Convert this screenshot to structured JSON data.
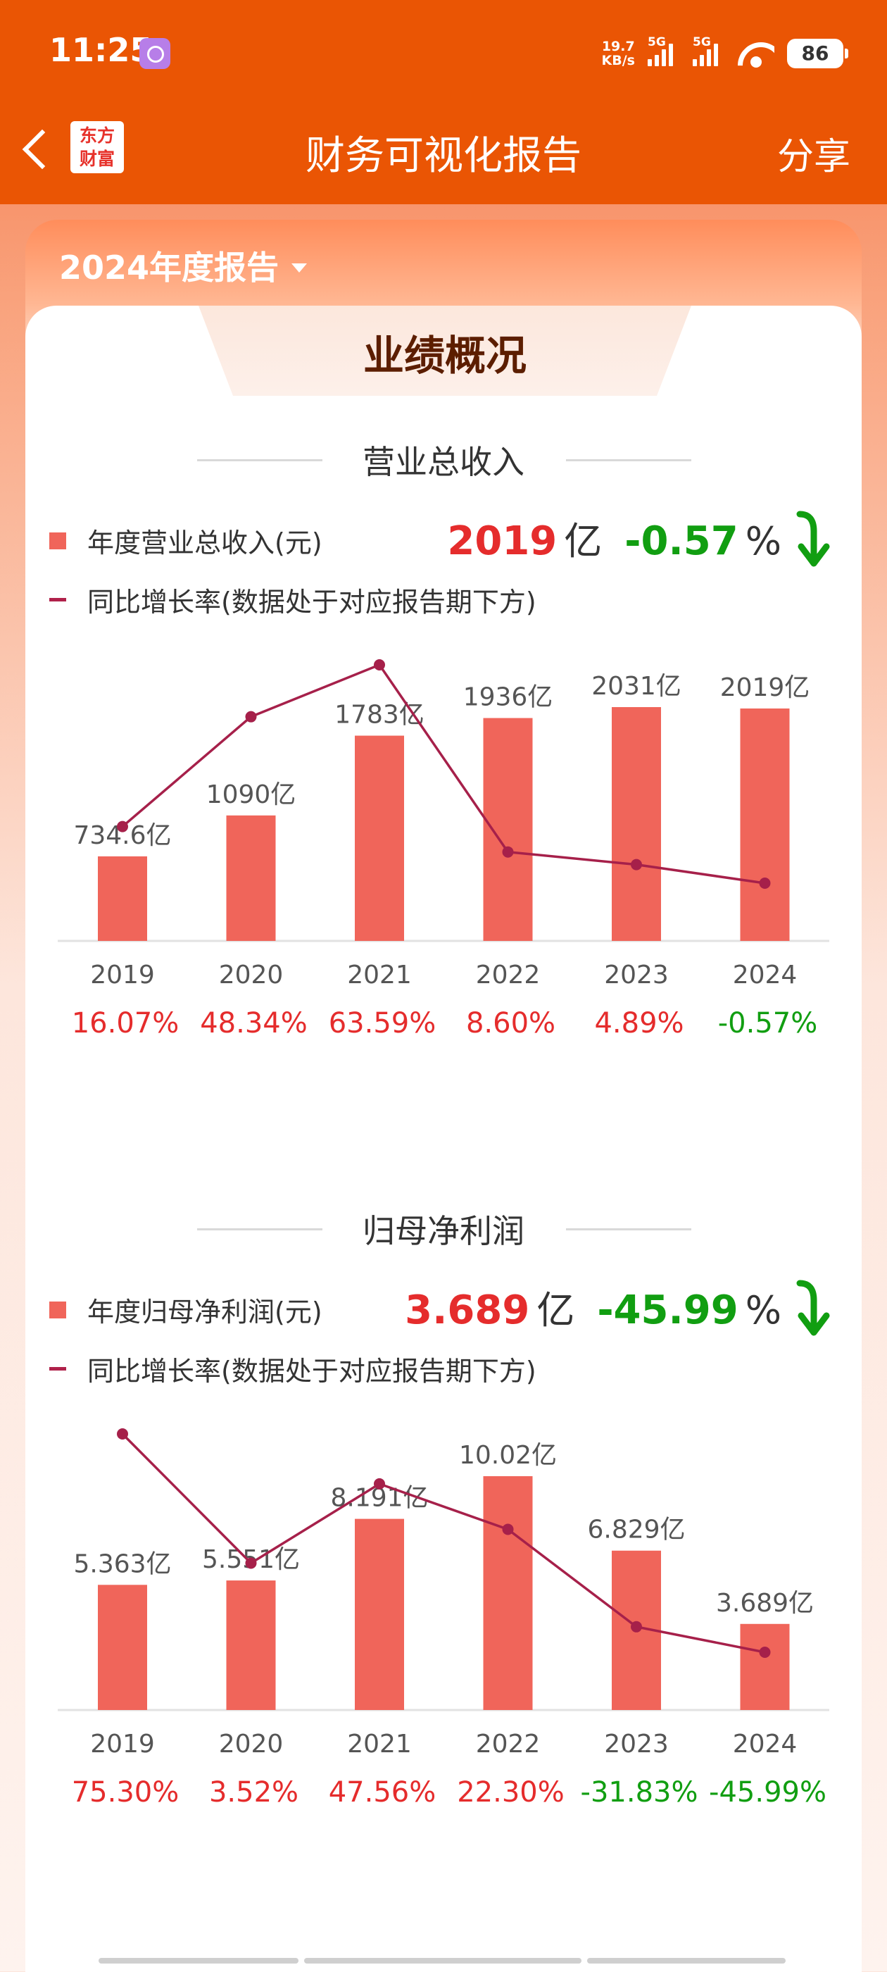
{
  "status_bar": {
    "time": "11:25",
    "net_speed_value": "19.7",
    "net_speed_unit": "KB/s",
    "signal1_label": "5G",
    "signal2_label": "5G",
    "battery": "86"
  },
  "header": {
    "logo_line1": "东方",
    "logo_line2": "财富",
    "title": "财务可视化报告",
    "share_label": "分享"
  },
  "report_selector": {
    "value": "2024年度报告"
  },
  "section_tab": "业绩概况",
  "colors": {
    "bar": "#f0655a",
    "line": "#a6204a",
    "positive": "#e52c2c",
    "negative": "#119e11",
    "header": "#ea5504"
  },
  "revenue": {
    "title": "营业总收入",
    "legend_bar": "年度营业总收入(元)",
    "legend_line": "同比增长率(数据处于对应报告期下方)",
    "headline_value": "2019",
    "headline_unit": "亿",
    "headline_pct": "-0.57",
    "headline_pct_unit": "%"
  },
  "net_profit": {
    "title": "归母净利润",
    "legend_bar": "年度归母净利润(元)",
    "legend_line": "同比增长率(数据处于对应报告期下方)",
    "headline_value": "3.689",
    "headline_unit": "亿",
    "headline_pct": "-45.99",
    "headline_pct_unit": "%"
  },
  "chart_data": [
    {
      "type": "bar",
      "title": "营业总收入",
      "categories": [
        "2019",
        "2020",
        "2021",
        "2022",
        "2023",
        "2024"
      ],
      "series": [
        {
          "name": "年度营业总收入(元)",
          "type": "bar",
          "values": [
            734.6,
            1090,
            1783,
            1936,
            2031,
            2019
          ],
          "labels": [
            "734.6亿",
            "1090亿",
            "1783亿",
            "1936亿",
            "2031亿",
            "2019亿"
          ]
        },
        {
          "name": "同比增长率(数据处于对应报告期下方)",
          "type": "line",
          "values": [
            16.07,
            48.34,
            63.59,
            8.6,
            4.89,
            -0.57
          ],
          "labels": [
            "16.07%",
            "48.34%",
            "63.59%",
            "8.60%",
            "4.89%",
            "-0.57%"
          ]
        }
      ]
    },
    {
      "type": "bar",
      "title": "归母净利润",
      "categories": [
        "2019",
        "2020",
        "2021",
        "2022",
        "2023",
        "2024"
      ],
      "series": [
        {
          "name": "年度归母净利润(元)",
          "type": "bar",
          "values": [
            5.363,
            5.551,
            8.191,
            10.02,
            6.829,
            3.689
          ],
          "labels": [
            "5.363亿",
            "5.551亿",
            "8.191亿",
            "10.02亿",
            "6.829亿",
            "3.689亿"
          ]
        },
        {
          "name": "同比增长率(数据处于对应报告期下方)",
          "type": "line",
          "values": [
            75.3,
            3.52,
            47.56,
            22.3,
            -31.83,
            -45.99
          ],
          "labels": [
            "75.30%",
            "3.52%",
            "47.56%",
            "22.30%",
            "-31.83%",
            "-45.99%"
          ]
        }
      ]
    }
  ]
}
